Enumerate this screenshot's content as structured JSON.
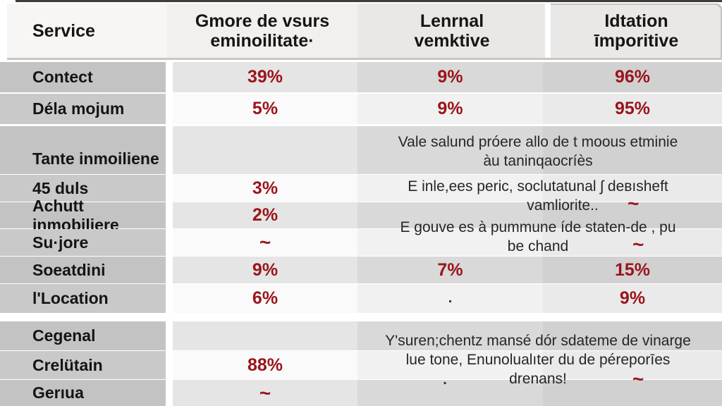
{
  "chart_data": {
    "type": "table",
    "title": "",
    "columns": [
      "Service",
      "Gmore de vsurs eminoilitate·",
      "Lenrnal vemktive",
      "Idtation īmporitive"
    ],
    "rows": [
      {
        "label": "Contect",
        "flag": false,
        "values": [
          "39%",
          "9%",
          "96%"
        ]
      },
      {
        "label": "Déla mojum",
        "flag": false,
        "values": [
          "5%",
          "9%",
          "95%"
        ]
      },
      {
        "label": "Tante inmoiliene",
        "flag": false,
        "values": [
          "",
          "",
          ""
        ]
      },
      {
        "label": "45 duls",
        "flag": false,
        "values": [
          "3%",
          "",
          ""
        ]
      },
      {
        "label": "Achutt inmobiliere",
        "flag": false,
        "values": [
          "2%",
          "",
          ""
        ]
      },
      {
        "label": "Su·jore",
        "flag": true,
        "values": [
          "~",
          "",
          ""
        ]
      },
      {
        "label": "Soeatdini",
        "flag": false,
        "values": [
          "9%",
          "7%",
          "15%"
        ]
      },
      {
        "label": "l'Location",
        "flag": true,
        "values": [
          "6%",
          ".",
          "9%"
        ]
      },
      {
        "label": "Cegenal",
        "flag": false,
        "values": [
          "",
          "",
          ""
        ]
      },
      {
        "label": "Crelütain",
        "flag": true,
        "values": [
          "88%",
          "",
          ""
        ]
      },
      {
        "label": "Gerıua",
        "flag": false,
        "values": [
          "~",
          "",
          ""
        ]
      }
    ],
    "merged_notes": {
      "section2": [
        "Vale salund próere allo de t moous etminie",
        "àu taninqaocríès",
        "E inle,ees peric, soclutatunal ʃ deвısheft",
        "vamliorite..",
        "~",
        "E gouve es à pummune íde staten-de , pu",
        "be chand",
        "~"
      ],
      "section4": [
        "Y'suren;chentz mansé dór sdateme de vinarge",
        "lue tone, Enunolualıter du de péreporīes",
        "drenans!",
        ".",
        "~"
      ]
    }
  },
  "colors": {
    "value_red": "#9a141a",
    "flag_red": "#ae1118",
    "label_gray": "#c3c3c3",
    "header_bg": "#f2f0ee",
    "text_black": "#141414"
  }
}
